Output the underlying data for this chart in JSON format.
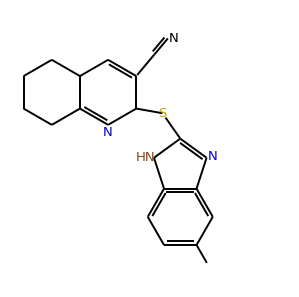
{
  "background": "#ffffff",
  "line_color": "#000000",
  "line_width": 1.4,
  "font_size": 9.5,
  "label_color_N": "#0000cd",
  "label_color_S": "#c8a000",
  "label_color_HN": "#8b4513",
  "label_color_CN": "#000000",
  "figsize": [
    2.99,
    2.97
  ],
  "dpi": 100,
  "xlim": [
    0,
    10
  ],
  "ylim": [
    0,
    10
  ]
}
